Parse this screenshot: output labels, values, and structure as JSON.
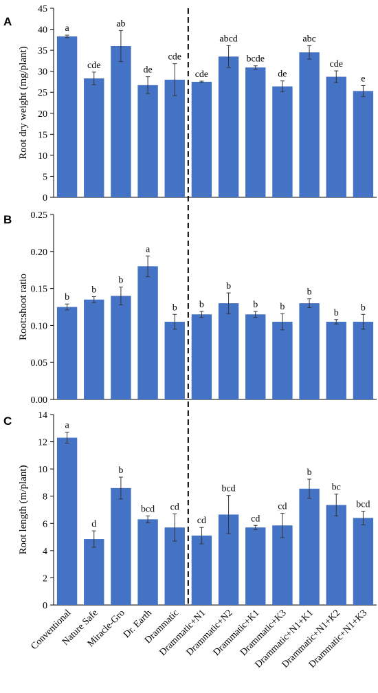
{
  "chart_data": {
    "type": "bar",
    "shared_categories": [
      "Conventional",
      "Nature Safe",
      "Miracle-Gro",
      "Dr. Earth",
      "Drammatic",
      "Drammatic+N1",
      "Drammatic+N2",
      "Drammatic+K1",
      "Drammatic+K3",
      "Drammatic+N1+K1",
      "Drammatic+N1+K2",
      "Drammatic+N1+K3"
    ],
    "divider_after_index": 4,
    "bar_color": "#4472C4",
    "panels": [
      {
        "letter": "A",
        "ylabel": "Root dry weight (mg/plant)",
        "ylim": [
          0,
          45
        ],
        "yticks": [
          0,
          5,
          10,
          15,
          20,
          25,
          30,
          35,
          40,
          45
        ],
        "tick_labels": [
          "0",
          "5",
          "10",
          "15",
          "20",
          "25",
          "30",
          "35",
          "40",
          "45"
        ],
        "values": [
          38.3,
          28.3,
          36.0,
          26.7,
          28.0,
          27.5,
          33.5,
          30.9,
          26.4,
          34.5,
          28.7,
          25.3
        ],
        "errors": [
          0.3,
          1.5,
          3.7,
          2.0,
          3.8,
          0.15,
          2.6,
          0.4,
          1.3,
          1.6,
          1.4,
          1.3
        ],
        "letters": [
          "a",
          "cde",
          "ab",
          "de",
          "cde",
          "cde",
          "abcd",
          "bcde",
          "de",
          "abc",
          "cde",
          "e"
        ]
      },
      {
        "letter": "B",
        "ylabel": "Root:shoot ratio",
        "ylim": [
          0,
          0.25
        ],
        "yticks": [
          0,
          0.05,
          0.1,
          0.15,
          0.2,
          0.25
        ],
        "tick_labels": [
          "0.00",
          "0.05",
          "0.10",
          "0.15",
          "0.20",
          "0.25"
        ],
        "values": [
          0.125,
          0.135,
          0.14,
          0.18,
          0.105,
          0.115,
          0.13,
          0.115,
          0.105,
          0.13,
          0.105,
          0.105
        ],
        "errors": [
          0.004,
          0.004,
          0.012,
          0.014,
          0.01,
          0.004,
          0.014,
          0.004,
          0.011,
          0.006,
          0.003,
          0.01
        ],
        "letters": [
          "b",
          "b",
          "b",
          "a",
          "b",
          "b",
          "b",
          "b",
          "b",
          "b",
          "b",
          "b"
        ]
      },
      {
        "letter": "C",
        "ylabel": "Root length (m/plant)",
        "ylim": [
          0,
          14
        ],
        "yticks": [
          0,
          2,
          4,
          6,
          8,
          10,
          12,
          14
        ],
        "tick_labels": [
          "0",
          "2",
          "4",
          "6",
          "8",
          "10",
          "12",
          "14"
        ],
        "values": [
          12.3,
          4.85,
          8.6,
          6.3,
          5.7,
          5.1,
          6.65,
          5.7,
          5.85,
          8.55,
          7.35,
          6.4
        ],
        "errors": [
          0.4,
          0.6,
          0.8,
          0.25,
          1.0,
          0.6,
          1.4,
          0.15,
          0.9,
          0.7,
          0.8,
          0.5
        ],
        "letters": [
          "a",
          "d",
          "b",
          "bcd",
          "cd",
          "cd",
          "bcd",
          "cd",
          "cd",
          "b",
          "bc",
          "bcd"
        ]
      }
    ]
  }
}
